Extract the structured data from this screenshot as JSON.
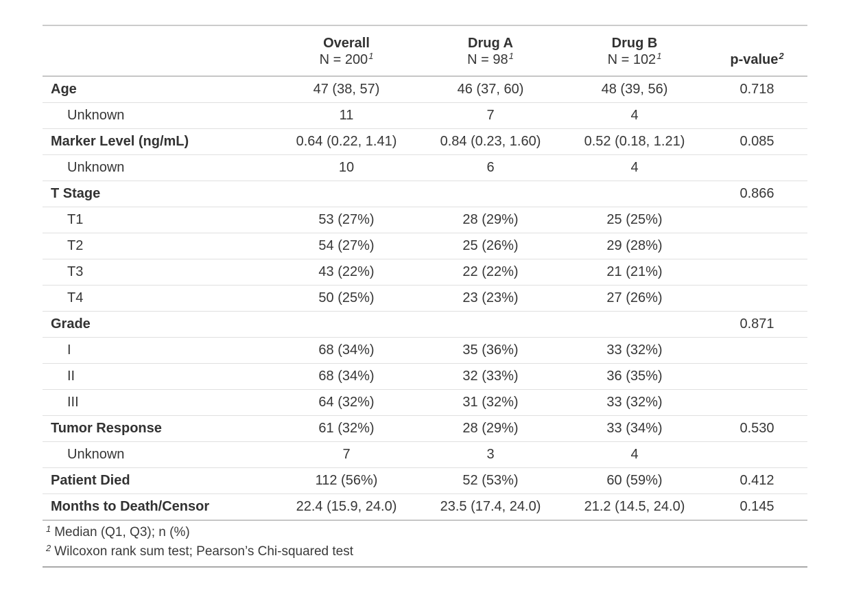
{
  "colors": {
    "background": "#ffffff",
    "text": "#363636",
    "bold_text": "#323232",
    "border_strong": "#c6c6c6",
    "border_light": "#e0e0e0",
    "border_bottom": "#a9a9a9"
  },
  "chart_data": {
    "type": "table",
    "header": {
      "label": "",
      "groups": [
        {
          "title": "Overall",
          "subtitle": "N = 200",
          "footnote_mark": "1"
        },
        {
          "title": "Drug A",
          "subtitle": "N = 98",
          "footnote_mark": "1"
        },
        {
          "title": "Drug B",
          "subtitle": "N = 102",
          "footnote_mark": "1"
        },
        {
          "title": "p-value",
          "subtitle": "",
          "footnote_mark": "2"
        }
      ]
    },
    "rows": [
      {
        "label": "Age",
        "level": 0,
        "values": [
          "47 (38, 57)",
          "46 (37, 60)",
          "48 (39, 56)",
          "0.718"
        ]
      },
      {
        "label": "Unknown",
        "level": 1,
        "values": [
          "11",
          "7",
          "4",
          ""
        ]
      },
      {
        "label": "Marker Level (ng/mL)",
        "level": 0,
        "values": [
          "0.64 (0.22, 1.41)",
          "0.84 (0.23, 1.60)",
          "0.52 (0.18, 1.21)",
          "0.085"
        ]
      },
      {
        "label": "Unknown",
        "level": 1,
        "values": [
          "10",
          "6",
          "4",
          ""
        ]
      },
      {
        "label": "T Stage",
        "level": 0,
        "values": [
          "",
          "",
          "",
          "0.866"
        ]
      },
      {
        "label": "T1",
        "level": 1,
        "values": [
          "53 (27%)",
          "28 (29%)",
          "25 (25%)",
          ""
        ]
      },
      {
        "label": "T2",
        "level": 1,
        "values": [
          "54 (27%)",
          "25 (26%)",
          "29 (28%)",
          ""
        ]
      },
      {
        "label": "T3",
        "level": 1,
        "values": [
          "43 (22%)",
          "22 (22%)",
          "21 (21%)",
          ""
        ]
      },
      {
        "label": "T4",
        "level": 1,
        "values": [
          "50 (25%)",
          "23 (23%)",
          "27 (26%)",
          ""
        ]
      },
      {
        "label": "Grade",
        "level": 0,
        "values": [
          "",
          "",
          "",
          "0.871"
        ]
      },
      {
        "label": "I",
        "level": 1,
        "values": [
          "68 (34%)",
          "35 (36%)",
          "33 (32%)",
          ""
        ]
      },
      {
        "label": "II",
        "level": 1,
        "values": [
          "68 (34%)",
          "32 (33%)",
          "36 (35%)",
          ""
        ]
      },
      {
        "label": "III",
        "level": 1,
        "values": [
          "64 (32%)",
          "31 (32%)",
          "33 (32%)",
          ""
        ]
      },
      {
        "label": "Tumor Response",
        "level": 0,
        "values": [
          "61 (32%)",
          "28 (29%)",
          "33 (34%)",
          "0.530"
        ]
      },
      {
        "label": "Unknown",
        "level": 1,
        "values": [
          "7",
          "3",
          "4",
          ""
        ]
      },
      {
        "label": "Patient Died",
        "level": 0,
        "values": [
          "112 (56%)",
          "52 (53%)",
          "60 (59%)",
          "0.412"
        ]
      },
      {
        "label": "Months to Death/Censor",
        "level": 0,
        "values": [
          "22.4 (15.9, 24.0)",
          "23.5 (17.4, 24.0)",
          "21.2 (14.5, 24.0)",
          "0.145"
        ]
      }
    ],
    "footnotes": [
      {
        "mark": "1",
        "text": "Median (Q1, Q3); n (%)"
      },
      {
        "mark": "2",
        "text": "Wilcoxon rank sum test; Pearson’s Chi-squared test"
      }
    ]
  }
}
